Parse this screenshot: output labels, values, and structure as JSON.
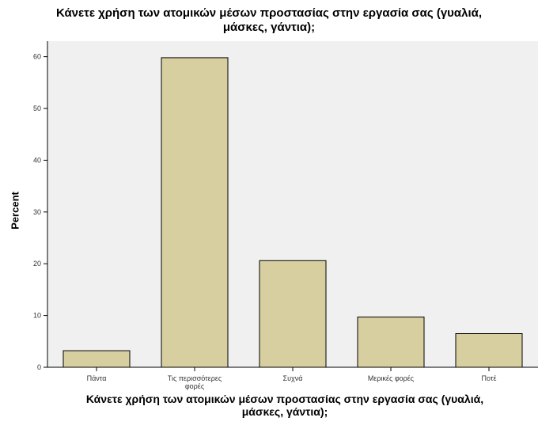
{
  "chart_data": {
    "type": "bar",
    "title_lines": [
      "Κάνετε χρήση των ατομικών μέσων προστασίας στην εργασία σας (γυαλιά,",
      "μάσκες, γάντια);"
    ],
    "xlabel_lines": [
      "Κάνετε χρήση των ατομικών μέσων προστασίας στην εργασία σας (γυαλιά,",
      "μάσκες, γάντια);"
    ],
    "ylabel": "Percent",
    "categories": [
      [
        "Πάντα"
      ],
      [
        "Τις περισσότερες",
        "φορές"
      ],
      [
        "Συχνά"
      ],
      [
        "Μερικές φορές"
      ],
      [
        "Ποτέ"
      ]
    ],
    "values": [
      3.2,
      59.8,
      20.6,
      9.7,
      6.5
    ],
    "yticks": [
      "0",
      "10",
      "20",
      "30",
      "40",
      "50",
      "60"
    ],
    "ylim": [
      0,
      63
    ],
    "grid": false,
    "colors": {
      "plot_background": "#f0f0f0",
      "bar_fill": "#d8cfa0",
      "bar_stroke": "#000000"
    }
  }
}
